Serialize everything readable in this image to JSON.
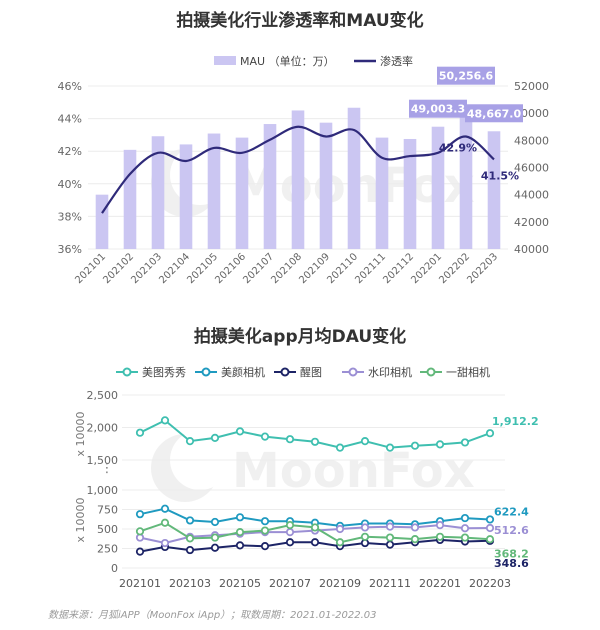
{
  "watermark": "MoonFox",
  "source_note": "数据来源：月狐iAPP（MoonFox iApp）；取数周期：2021.01-2022.03",
  "chart_data": [
    {
      "type": "bar",
      "title": "拍摄美化行业渗透率和MAU变化",
      "categories": [
        "202101",
        "202102",
        "202103",
        "202104",
        "202105",
        "202106",
        "202107",
        "202108",
        "202109",
        "202110",
        "202111",
        "202112",
        "202201",
        "202202",
        "202203"
      ],
      "series": [
        {
          "name": "MAU （单位：万）",
          "kind": "bar",
          "axis": "right",
          "color": "#cbc6f2",
          "values": [
            44000,
            47300,
            48300,
            47700,
            48500,
            48200,
            49200,
            50200,
            49300,
            50400,
            48200,
            48100,
            49003.3,
            50256.6,
            48667.0
          ]
        },
        {
          "name": "渗透率",
          "kind": "line",
          "axis": "left",
          "color": "#2f2a7a",
          "values": [
            38.2,
            40.6,
            41.9,
            41.4,
            42.2,
            41.9,
            42.7,
            43.5,
            42.9,
            43.3,
            41.6,
            41.7,
            41.9,
            42.9,
            41.5
          ]
        }
      ],
      "y_left": {
        "min": 36,
        "max": 46,
        "ticks": [
          "36%",
          "38%",
          "40%",
          "42%",
          "44%",
          "46%"
        ]
      },
      "y_right": {
        "min": 40000,
        "max": 52000,
        "ticks": [
          "40000",
          "42000",
          "44000",
          "46000",
          "48000",
          "50000",
          "52000"
        ]
      },
      "bar_labels": [
        {
          "index": 12,
          "text": "49,003.3"
        },
        {
          "index": 13,
          "text": "50,256.6"
        },
        {
          "index": 14,
          "text": "48,667.0"
        }
      ],
      "line_labels": [
        {
          "index": 13,
          "text": "42.9%"
        },
        {
          "index": 14,
          "text": "41.5%"
        }
      ],
      "legend": "top"
    },
    {
      "type": "line",
      "title": "拍摄美化app月均DAU变化",
      "categories": [
        "202101",
        "202102",
        "202103",
        "202104",
        "202105",
        "202106",
        "202107",
        "202108",
        "202109",
        "202110",
        "202111",
        "202112",
        "202201",
        "202202",
        "202203"
      ],
      "x_tick_labels": [
        "202101",
        "202103",
        "202105",
        "202107",
        "202109",
        "202111",
        "202201",
        "202203"
      ],
      "series": [
        {
          "name": "美图秀秀",
          "color": "#3fbfb0",
          "segment": "upper",
          "values": [
            1920,
            2110,
            1790,
            1840,
            1940,
            1860,
            1820,
            1780,
            1690,
            1790,
            1690,
            1720,
            1740,
            1770,
            1912.2
          ]
        },
        {
          "name": "美颜相机",
          "color": "#1f9ac0",
          "segment": "lower",
          "values": [
            690,
            760,
            610,
            590,
            650,
            600,
            600,
            580,
            540,
            570,
            570,
            560,
            600,
            640,
            622.4
          ]
        },
        {
          "name": "醒图",
          "color": "#1d2466",
          "segment": "lower",
          "values": [
            210,
            270,
            230,
            260,
            290,
            280,
            330,
            330,
            280,
            320,
            300,
            330,
            360,
            340,
            348.6
          ]
        },
        {
          "name": "水印相机",
          "color": "#9b8fd4",
          "segment": "lower",
          "values": [
            390,
            320,
            400,
            420,
            440,
            460,
            460,
            480,
            500,
            520,
            530,
            520,
            550,
            510,
            512.6
          ]
        },
        {
          "name": "一甜相机",
          "color": "#62b87a",
          "segment": "lower",
          "values": [
            470,
            580,
            380,
            390,
            460,
            480,
            550,
            520,
            330,
            400,
            390,
            370,
            400,
            390,
            368.2
          ]
        }
      ],
      "upper_axis": {
        "min": 1500,
        "max": 2500,
        "ticks": [
          "1,500",
          "2,000",
          "2,500"
        ],
        "label": "x 10000"
      },
      "lower_axis": {
        "min": 0,
        "max": 1000,
        "ticks": [
          "0",
          "250",
          "500",
          "750",
          "1,000"
        ],
        "label": "x 10000"
      },
      "end_labels": [
        "1,912.2",
        "622.4",
        "348.6",
        "512.6",
        "368.2"
      ],
      "legend": "top"
    }
  ]
}
